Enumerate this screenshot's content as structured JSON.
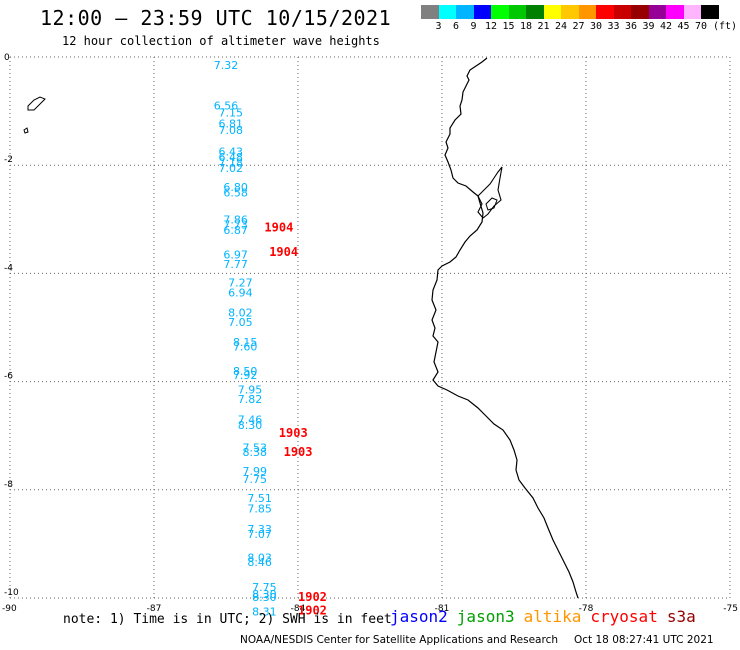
{
  "header": {
    "title": "12:00 – 23:59 UTC 10/15/2021",
    "subtitle": "12 hour collection of altimeter wave heights"
  },
  "legend": {
    "colors": [
      "#808080",
      "#00ffff",
      "#00b4ff",
      "#0000ff",
      "#00ff00",
      "#00c800",
      "#008000",
      "#ffff00",
      "#ffc800",
      "#ff9600",
      "#ff0000",
      "#c80000",
      "#960000",
      "#960096",
      "#ff00ff",
      "#ffb4ff",
      "#000000"
    ],
    "labels": [
      "3",
      "6",
      "9",
      "12",
      "15",
      "18",
      "21",
      "24",
      "27",
      "30",
      "33",
      "36",
      "39",
      "42",
      "45",
      "70"
    ],
    "unit": "(ft)"
  },
  "map": {
    "lon_range": [
      -90,
      -75
    ],
    "lat_range": [
      -10,
      0
    ],
    "x_tick_labels": [
      "-90",
      "-87",
      "-84",
      "-81",
      "-78",
      "-75"
    ],
    "y_tick_labels": [
      "0",
      "-2",
      "-4",
      "-6",
      "-8",
      "-10"
    ],
    "swh_color": "#00b4ff",
    "time_color": "#ff0000"
  },
  "chart_data": {
    "type": "scatter",
    "title": "12:00 – 23:59 UTC 10/15/2021",
    "xlabel": "",
    "ylabel": "",
    "xlim": [
      -90,
      -75
    ],
    "ylim": [
      -10,
      0
    ],
    "grid": true,
    "swh_points": [
      {
        "lon": -85.5,
        "lat": -0.15,
        "swh": "7.32"
      },
      {
        "lon": -85.5,
        "lat": -0.9,
        "swh": "6.56"
      },
      {
        "lon": -85.4,
        "lat": -1.03,
        "swh": "7.15"
      },
      {
        "lon": -85.4,
        "lat": -1.23,
        "swh": "6.81"
      },
      {
        "lon": -85.4,
        "lat": -1.35,
        "swh": "7.08"
      },
      {
        "lon": -85.4,
        "lat": -1.75,
        "swh": "6.43"
      },
      {
        "lon": -85.4,
        "lat": -1.85,
        "swh": "6.48"
      },
      {
        "lon": -85.4,
        "lat": -1.95,
        "swh": "7.18"
      },
      {
        "lon": -85.4,
        "lat": -2.05,
        "swh": "7.02"
      },
      {
        "lon": -85.3,
        "lat": -2.4,
        "swh": "6.80"
      },
      {
        "lon": -85.3,
        "lat": -2.5,
        "swh": "6.58"
      },
      {
        "lon": -85.3,
        "lat": -3.0,
        "swh": "7.86"
      },
      {
        "lon": -85.3,
        "lat": -3.1,
        "swh": "7.73"
      },
      {
        "lon": -85.3,
        "lat": -3.2,
        "swh": "6.87"
      },
      {
        "lon": -85.3,
        "lat": -3.65,
        "swh": "6.97"
      },
      {
        "lon": -85.3,
        "lat": -3.83,
        "swh": "7.77"
      },
      {
        "lon": -85.2,
        "lat": -4.17,
        "swh": "7.27"
      },
      {
        "lon": -85.2,
        "lat": -4.35,
        "swh": "6.94"
      },
      {
        "lon": -85.2,
        "lat": -4.72,
        "swh": "8.02"
      },
      {
        "lon": -85.2,
        "lat": -4.9,
        "swh": "7.05"
      },
      {
        "lon": -85.1,
        "lat": -5.27,
        "swh": "8.15"
      },
      {
        "lon": -85.1,
        "lat": -5.35,
        "swh": "7.60"
      },
      {
        "lon": -85.1,
        "lat": -5.8,
        "swh": "8.50"
      },
      {
        "lon": -85.1,
        "lat": -5.88,
        "swh": "7.92"
      },
      {
        "lon": -85.0,
        "lat": -6.15,
        "swh": "7.95"
      },
      {
        "lon": -85.0,
        "lat": -6.32,
        "swh": "7.82"
      },
      {
        "lon": -85.0,
        "lat": -6.7,
        "swh": "7.46"
      },
      {
        "lon": -85.0,
        "lat": -6.8,
        "swh": "8.30"
      },
      {
        "lon": -84.9,
        "lat": -7.22,
        "swh": "7.53"
      },
      {
        "lon": -84.9,
        "lat": -7.3,
        "swh": "8.38"
      },
      {
        "lon": -84.9,
        "lat": -7.65,
        "swh": "7.99"
      },
      {
        "lon": -84.9,
        "lat": -7.8,
        "swh": "7.75"
      },
      {
        "lon": -84.8,
        "lat": -8.15,
        "swh": "7.51"
      },
      {
        "lon": -84.8,
        "lat": -8.35,
        "swh": "7.85"
      },
      {
        "lon": -84.8,
        "lat": -8.72,
        "swh": "7.33"
      },
      {
        "lon": -84.8,
        "lat": -8.82,
        "swh": "7.07"
      },
      {
        "lon": -84.8,
        "lat": -9.25,
        "swh": "8.03"
      },
      {
        "lon": -84.8,
        "lat": -9.33,
        "swh": "8.46"
      },
      {
        "lon": -84.7,
        "lat": -9.8,
        "swh": "7.75"
      },
      {
        "lon": -84.7,
        "lat": -9.93,
        "swh": "8.30"
      },
      {
        "lon": -84.7,
        "lat": -9.98,
        "swh": "8.30"
      },
      {
        "lon": -84.7,
        "lat": -10.25,
        "swh": "8.31"
      }
    ],
    "time_labels": [
      {
        "lon": -84.7,
        "lat": -3.15,
        "time": "1904"
      },
      {
        "lon": -84.6,
        "lat": -3.6,
        "time": "1904"
      },
      {
        "lon": -84.4,
        "lat": -6.95,
        "time": "1903"
      },
      {
        "lon": -84.3,
        "lat": -7.3,
        "time": "1903"
      },
      {
        "lon": -84.0,
        "lat": -9.98,
        "time": "1902"
      },
      {
        "lon": -84.0,
        "lat": -10.23,
        "time": "1902"
      }
    ]
  },
  "footer": {
    "note": "note: 1) Time is in UTC; 2) SWH is in feet",
    "satellites": [
      {
        "name": "jason2",
        "color": "#0000ff"
      },
      {
        "name": "jason3",
        "color": "#00a000"
      },
      {
        "name": "altika",
        "color": "#ff9600"
      },
      {
        "name": "cryosat",
        "color": "#ff0000"
      },
      {
        "name": "s3a",
        "color": "#960000"
      }
    ],
    "credit_org": "NOAA/NESDIS Center for Satellite Applications and Research",
    "credit_time": "Oct 18 08:27:41 UTC 2021"
  }
}
